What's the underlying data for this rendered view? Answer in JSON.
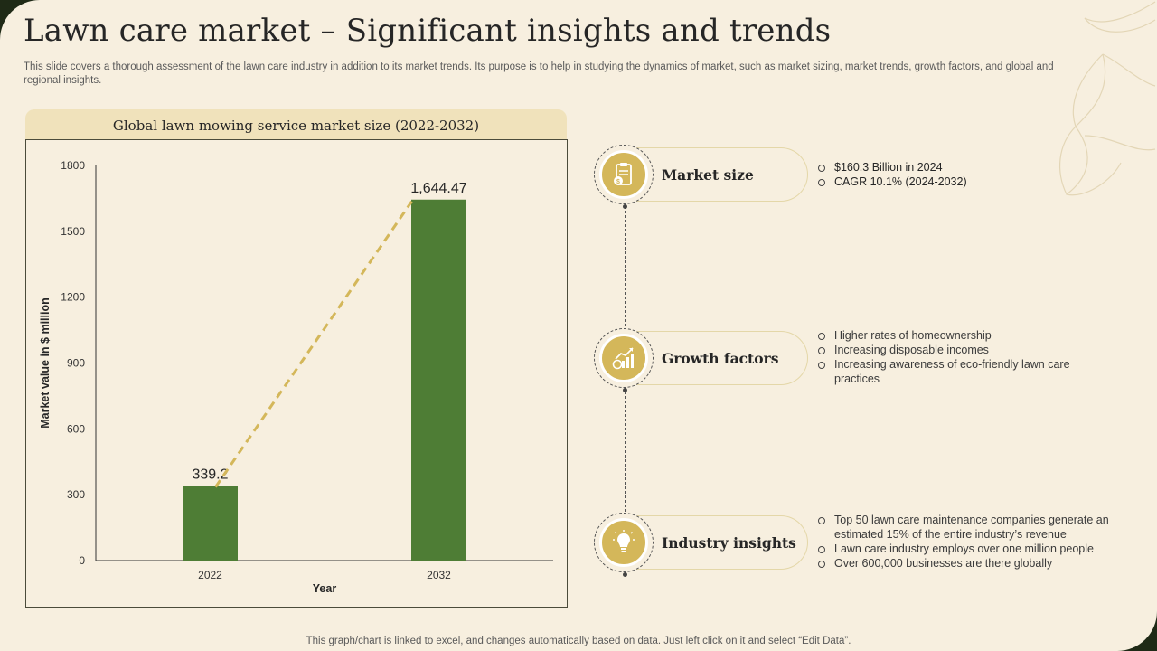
{
  "title": "Lawn care market – Significant insights and trends",
  "subtitle": "This slide covers a thorough assessment of the lawn care industry in addition to its market trends. Its purpose is to help in studying the dynamics of market, such as market sizing, market trends, growth factors, and global and regional insights.",
  "chart_header": "Global lawn mowing service market size (2022-2032)",
  "chart_data": {
    "type": "bar",
    "title": "Global lawn mowing service market size (2022-2032)",
    "categories": [
      "2022",
      "2032"
    ],
    "values": [
      339.2,
      1644.47
    ],
    "data_labels": [
      "339.2",
      "1,644.47"
    ],
    "xlabel": "Year",
    "ylabel": "Market value in $ million",
    "ylim": [
      0,
      1800
    ],
    "yticks": [
      0,
      300,
      600,
      900,
      1200,
      1500,
      1800
    ],
    "trendline": "dashed",
    "grid": false,
    "legend": "none",
    "colors": {
      "bar": "#4e7d35",
      "trend": "#d4b75a",
      "axis": "#333333"
    }
  },
  "insights": [
    {
      "label": "Market size",
      "icon": "clipboard-money-icon",
      "bullets": [
        "$160.3 Billion in 2024",
        "CAGR 10.1% (2024-2032)"
      ]
    },
    {
      "label": "Growth factors",
      "icon": "growth-chart-icon",
      "bullets": [
        "Higher rates of homeownership",
        "Increasing disposable incomes",
        "Increasing awareness of eco-friendly lawn care practices"
      ]
    },
    {
      "label": "Industry insights",
      "icon": "lightbulb-icon",
      "bullets": [
        "Top 50 lawn care maintenance companies generate an estimated 15% of the entire industry’s revenue",
        "Lawn care industry employs over one million people",
        "Over 600,000 businesses are there globally"
      ]
    }
  ],
  "footer": "This graph/chart is linked to excel, and changes automatically based on data. Just left click on it and select “Edit Data”.",
  "colors": {
    "background": "#f7efdf",
    "accent": "#d4b75a",
    "frame": "#1f2a16"
  }
}
